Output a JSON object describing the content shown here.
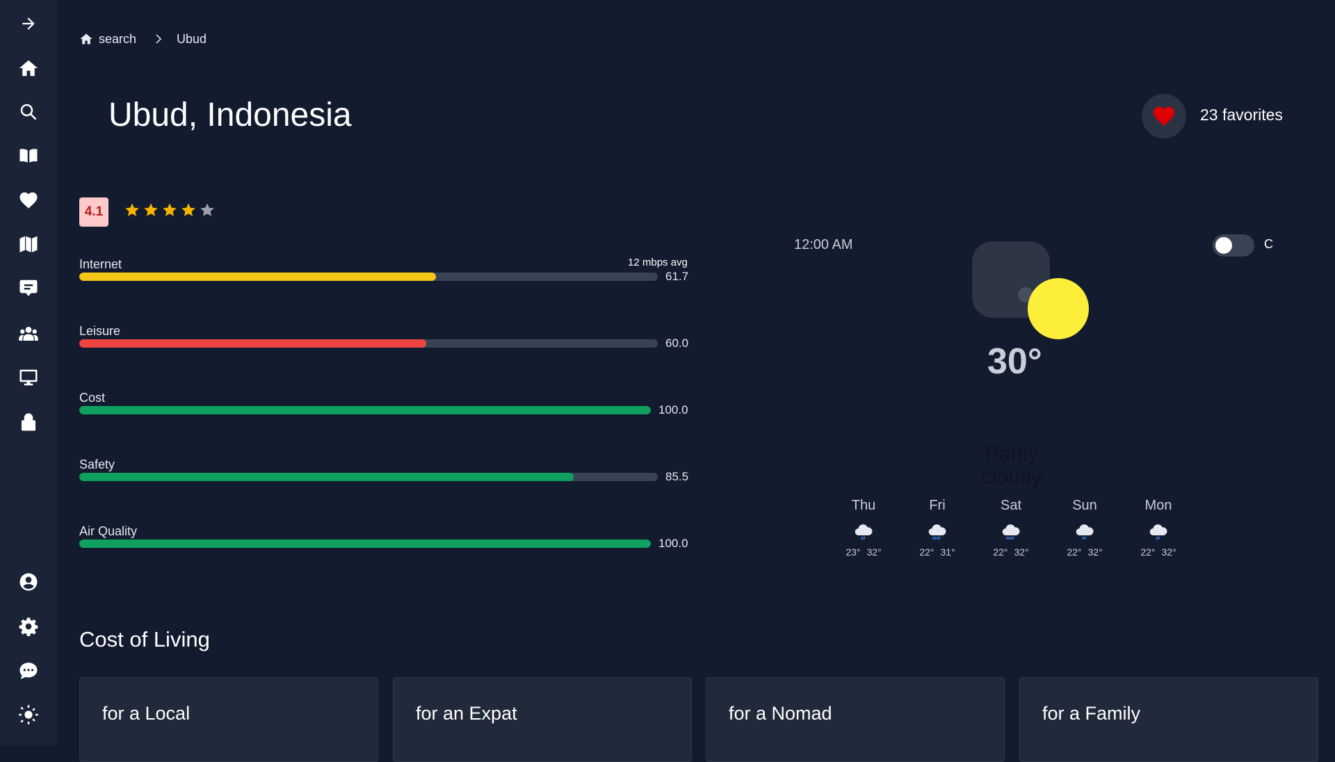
{
  "breadcrumb": {
    "items": [
      {
        "label": "search"
      },
      {
        "label": "Ubud"
      }
    ]
  },
  "city": {
    "title": "Ubud, Indonesia",
    "favorites_label": "23 favorites",
    "rating": {
      "score_label": "4.1",
      "stars": 4.1,
      "max_stars": 5
    }
  },
  "metrics": [
    {
      "label": "Internet",
      "value": 61.7,
      "value_label": "61.7",
      "note": "12 mbps avg",
      "color": "#f5c518"
    },
    {
      "label": "Leisure",
      "value": 60.0,
      "value_label": "60.0",
      "color": "#ef4444"
    },
    {
      "label": "Cost",
      "value": 100.0,
      "value_label": "100.0",
      "color": "#10a060"
    },
    {
      "label": "Safety",
      "value": 85.5,
      "value_label": "85.5",
      "color": "#10a060"
    },
    {
      "label": "Air Quality",
      "value": 100.0,
      "value_label": "100.0",
      "color": "#10a060"
    }
  ],
  "weather": {
    "time": "12:00 AM",
    "unit_label": "C",
    "unit_toggle_on": false,
    "temperature": "30°",
    "condition": "Partly cloudy",
    "icon": "partly-cloudy-icon",
    "forecast": [
      {
        "day": "Thu",
        "low": "23°",
        "high": "32°",
        "icon": "rain-cloud-icon"
      },
      {
        "day": "Fri",
        "low": "22°",
        "high": "31°",
        "icon": "heavy-rain-cloud-icon"
      },
      {
        "day": "Sat",
        "low": "22°",
        "high": "32°",
        "icon": "heavy-rain-cloud-icon"
      },
      {
        "day": "Sun",
        "low": "22°",
        "high": "32°",
        "icon": "rain-cloud-icon"
      },
      {
        "day": "Mon",
        "low": "22°",
        "high": "32°",
        "icon": "rain-cloud-icon"
      }
    ]
  },
  "cost_of_living": {
    "title": "Cost of Living",
    "cards": [
      {
        "label": "for a Local"
      },
      {
        "label": "for an Expat"
      },
      {
        "label": "for a Nomad"
      },
      {
        "label": "for a Family"
      }
    ]
  },
  "sidebar": {
    "icons": [
      "arrow-right-icon",
      "home-icon",
      "search-icon",
      "book-icon",
      "heart-icon",
      "map-icon",
      "chat-icon",
      "people-icon",
      "monitor-icon",
      "lock-icon",
      "user-icon",
      "gear-icon",
      "message-icon",
      "sun-icon"
    ]
  },
  "colors": {
    "background": "#131b2e",
    "sidebar": "#1b2436",
    "rating_badge_bg": "#fecaca",
    "rating_badge_text": "#b91c1c",
    "star_filled": "#f4b400",
    "star_empty": "#9aa1ad",
    "heart": "#dc0000",
    "sun": "#fdee39"
  }
}
